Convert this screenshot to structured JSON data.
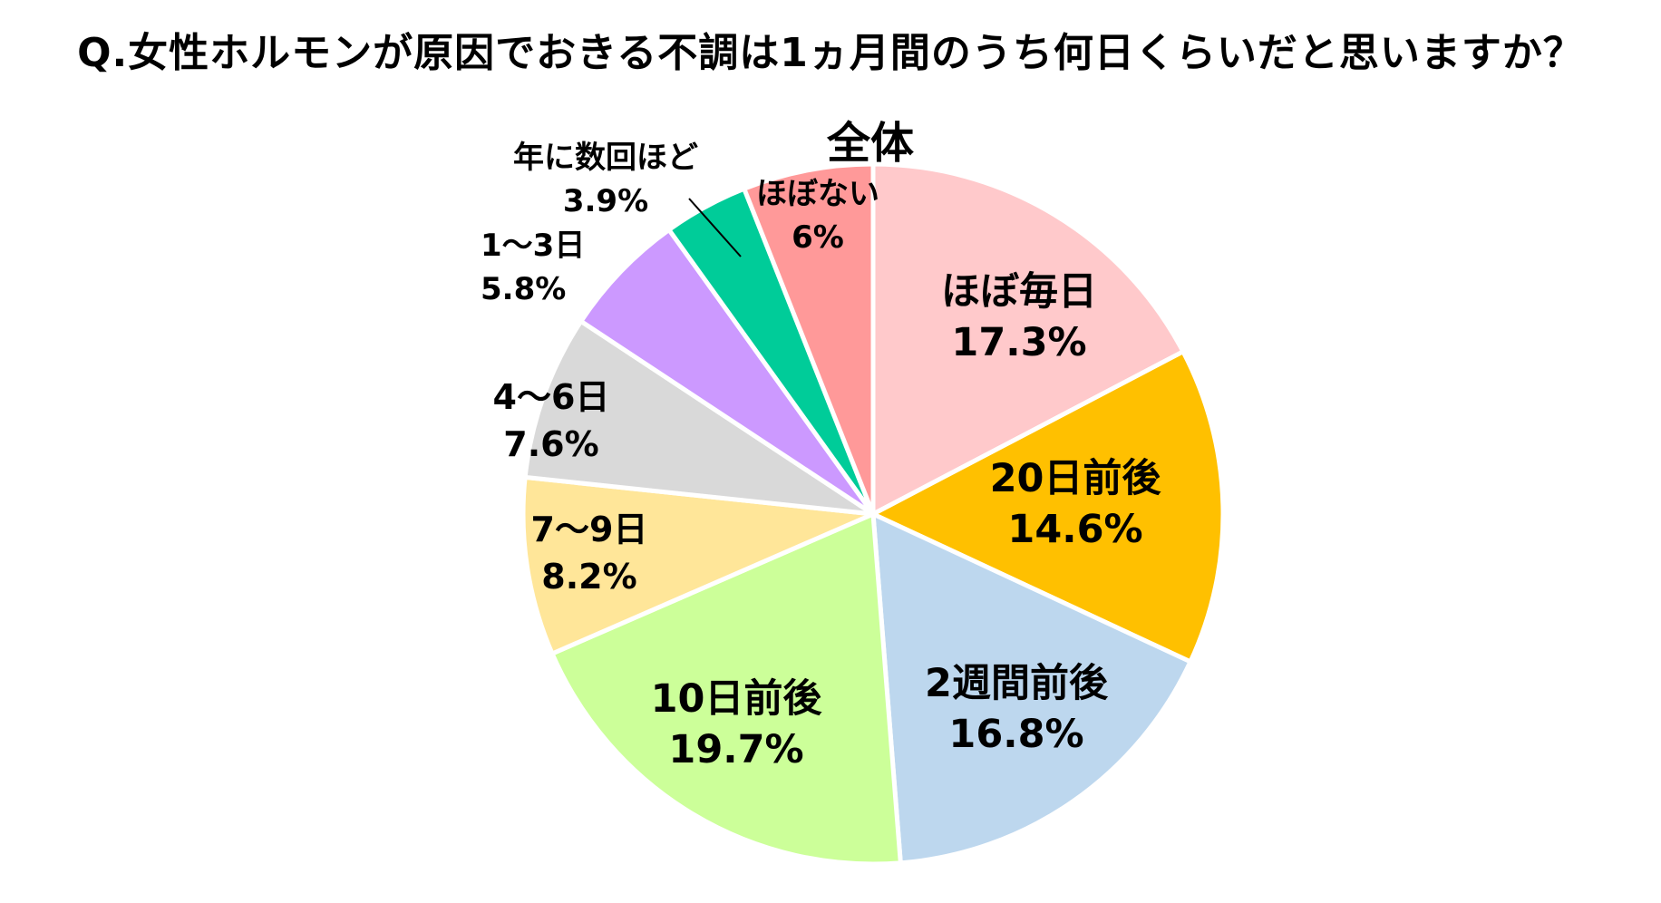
{
  "chart_data": {
    "type": "pie",
    "title": "Q.女性ホルモンが原因でおきる不調は1ヵ月間のうち何日くらいだと思いますか？",
    "subtitle": "全体",
    "start_angle_deg": 0,
    "direction": "clockwise",
    "slices": [
      {
        "label": "ほぼ毎日",
        "value": 17.3,
        "display": "17.3%",
        "color": "#FFC9CB"
      },
      {
        "label": "20日前後",
        "value": 14.6,
        "display": "14.6%",
        "color": "#FFC000"
      },
      {
        "label": "2週間前後",
        "value": 16.8,
        "display": "16.8%",
        "color": "#BDD7EE"
      },
      {
        "label": "10日前後",
        "value": 19.7,
        "display": "19.7%",
        "color": "#CCFF99"
      },
      {
        "label": "7～9日",
        "value": 8.2,
        "display": "8.2%",
        "color": "#FFE699"
      },
      {
        "label": "4～6日",
        "value": 7.6,
        "display": "7.6%",
        "color": "#D9D9D9"
      },
      {
        "label": "1～3日",
        "value": 5.8,
        "display": "5.8%",
        "color": "#CC99FF"
      },
      {
        "label": "年に数回ほど",
        "value": 3.9,
        "display": "3.9%",
        "color": "#00CC99"
      },
      {
        "label": "ほぼない",
        "value": 6,
        "display": "6%",
        "color": "#FF9999"
      }
    ]
  }
}
